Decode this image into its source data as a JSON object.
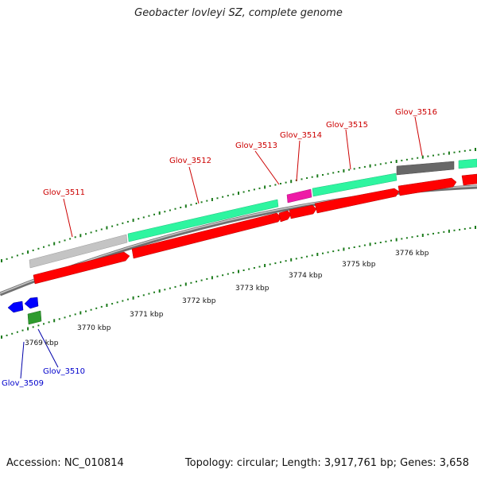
{
  "title": "Geobacter lovleyi SZ, complete genome",
  "footer": {
    "accession": "Accession: NC_010814",
    "summary": "Topology: circular; Length: 3,917,761 bp; Genes: 3,658"
  },
  "colors": {
    "forward_cds": "#ff0000",
    "reverse_cds": "#0000ff",
    "rna": "#2e9b2e",
    "tick": "#1a7a1a",
    "annotation_green": "#2ef5a0",
    "annotation_light_gray": "#c4c4c4",
    "annotation_dark_gray": "#686868",
    "annotation_pink": "#ee1aa6",
    "backbone": "#8e8e8e"
  },
  "kbp_labels": [
    "3769 kbp",
    "3770 kbp",
    "3771 kbp",
    "3772 kbp",
    "3773 kbp",
    "3774 kbp",
    "3775 kbp",
    "3776 kbp"
  ],
  "genes": [
    {
      "name": "Glov_3509",
      "strand": "reverse"
    },
    {
      "name": "Glov_3510",
      "strand": "reverse"
    },
    {
      "name": "Glov_3511",
      "strand": "forward"
    },
    {
      "name": "Glov_3512",
      "strand": "forward"
    },
    {
      "name": "Glov_3513",
      "strand": "forward"
    },
    {
      "name": "Glov_3514",
      "strand": "forward"
    },
    {
      "name": "Glov_3515",
      "strand": "forward"
    },
    {
      "name": "Glov_3516",
      "strand": "forward"
    }
  ]
}
